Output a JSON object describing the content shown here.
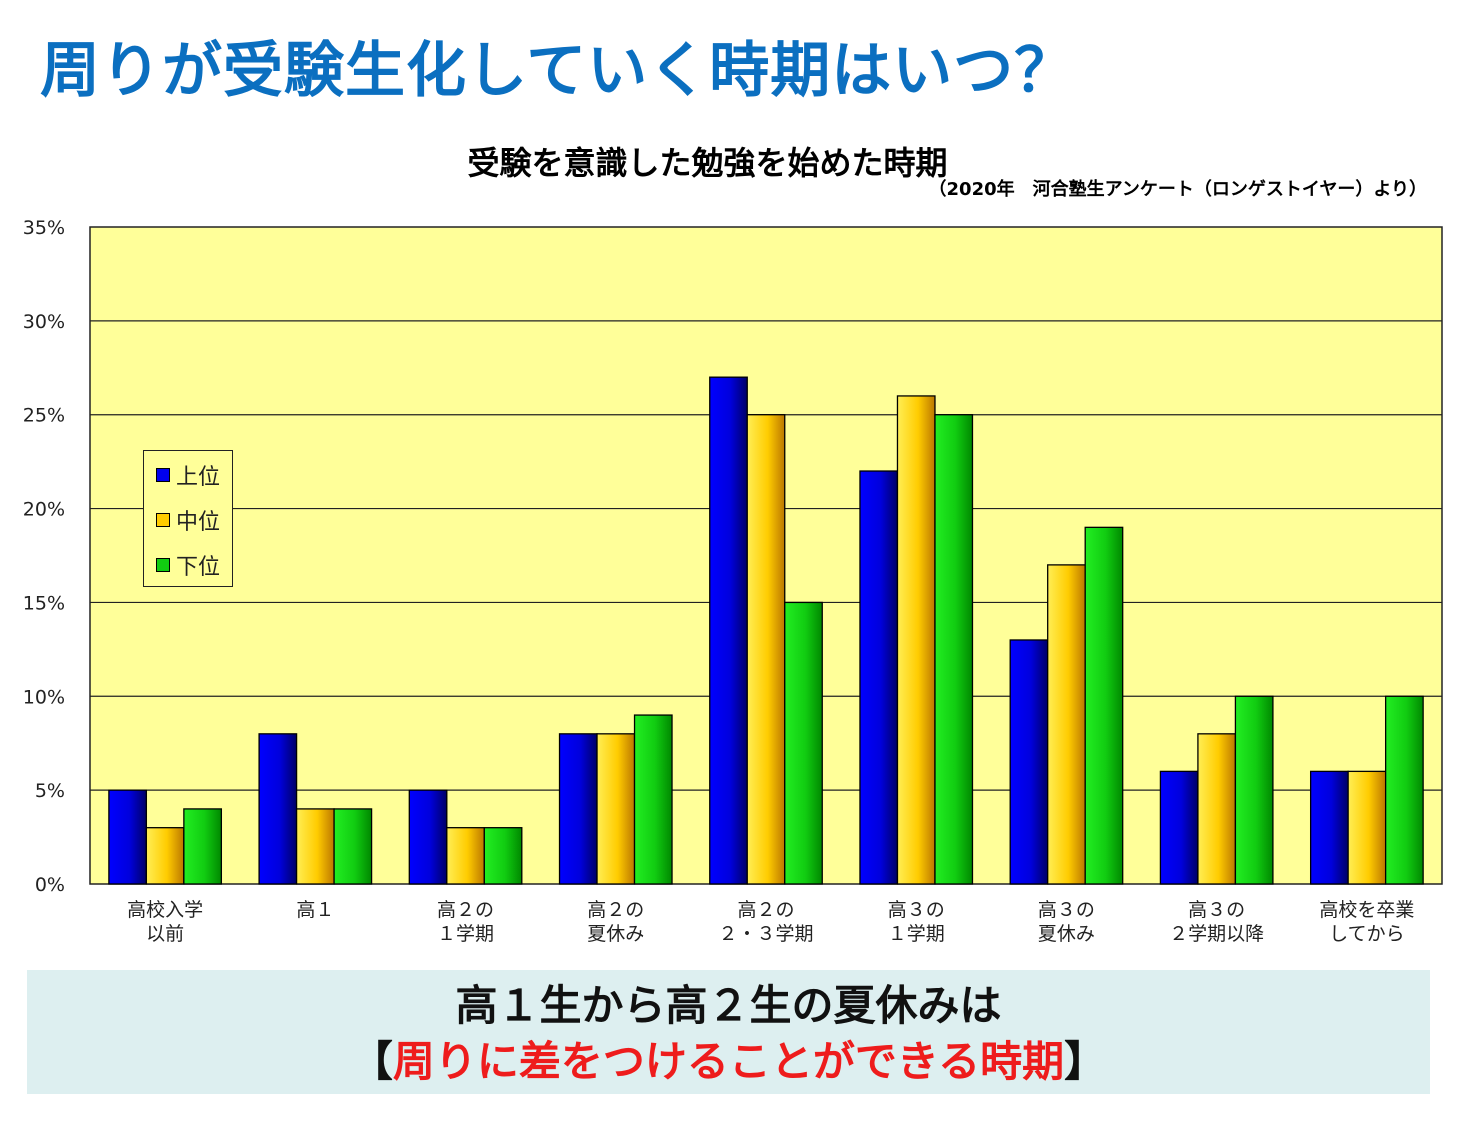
{
  "page_title": "周りが受験生化していく時期はいつ？",
  "message": {
    "line1": "高１生から高２生の夏休みは",
    "bracket_open": "【",
    "highlight": "周りに差をつけることができる時期",
    "bracket_close": "】"
  },
  "colors": {
    "title": "#0b6fc0",
    "plot_background": "#ffff99",
    "highlight": "#ee1c1c",
    "message_background": "#ddeff0"
  },
  "chart_data": {
    "type": "bar",
    "title": "受験を意識した勉強を始めた時期",
    "source": "（2020年　河合塾生アンケート（ロンゲストイヤー）より）",
    "categories": [
      [
        "高校入学",
        "以前"
      ],
      [
        "高１"
      ],
      [
        "高２の",
        "１学期"
      ],
      [
        "高２の",
        "夏休み"
      ],
      [
        "高２の",
        "２・３学期"
      ],
      [
        "高３の",
        "１学期"
      ],
      [
        "高３の",
        "夏休み"
      ],
      [
        "高３の",
        "２学期以降"
      ],
      [
        "高校を卒業",
        "してから"
      ]
    ],
    "series": [
      {
        "name": "上位",
        "color": "#0000ee",
        "values": [
          5,
          8,
          5,
          8,
          27,
          22,
          13,
          6,
          6
        ]
      },
      {
        "name": "中位",
        "color": "#ffcc00",
        "values": [
          3,
          4,
          3,
          8,
          25,
          26,
          17,
          8,
          6
        ]
      },
      {
        "name": "下位",
        "color": "#11cc11",
        "values": [
          4,
          4,
          3,
          9,
          15,
          25,
          19,
          10,
          10
        ]
      }
    ],
    "ylim": [
      0,
      35
    ],
    "yticks": [
      "0%",
      "5%",
      "10%",
      "15%",
      "20%",
      "25%",
      "30%",
      "35%"
    ],
    "ytick_values": [
      0,
      5,
      10,
      15,
      20,
      25,
      30,
      35
    ],
    "grid": true,
    "legend_position": "left"
  }
}
